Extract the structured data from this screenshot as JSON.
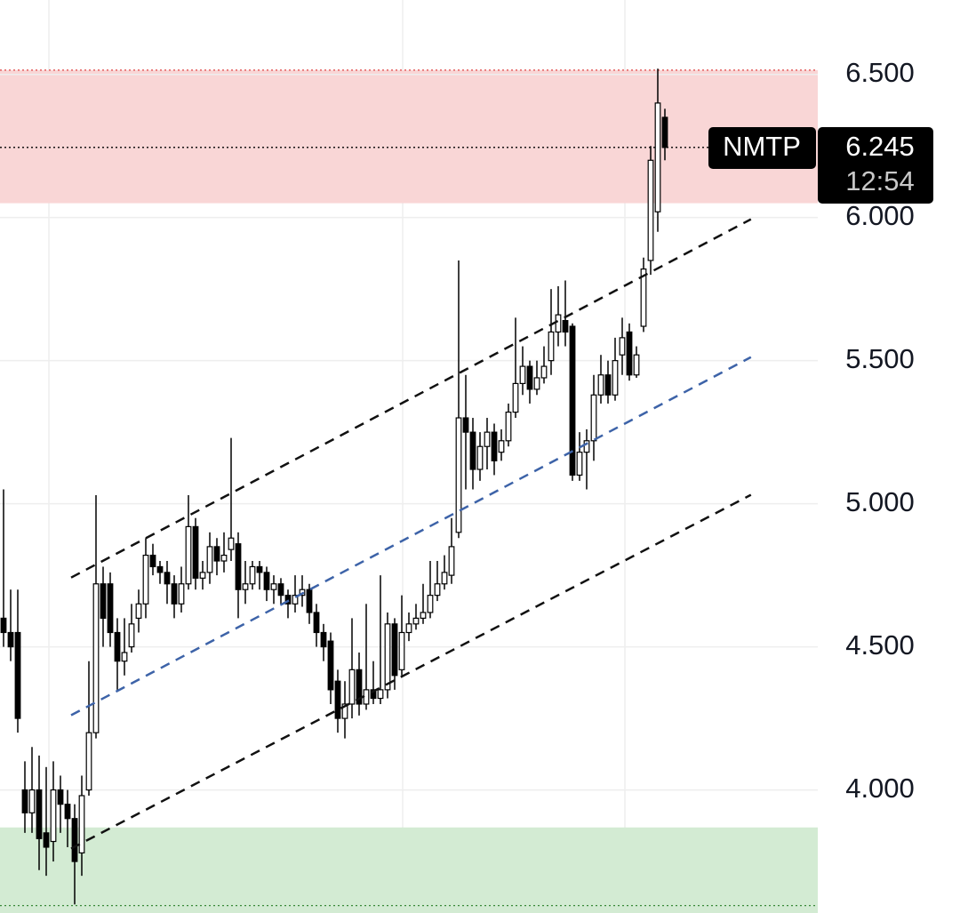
{
  "chart_data": {
    "type": "candlestick",
    "symbol": "NMTP",
    "last_price": 6.245,
    "last_price_label": "6.245",
    "countdown": "12:54",
    "up_color": "#ffffff",
    "down_color": "#000000",
    "border_color": "#000000",
    "xlim": [
      -0.5,
      114.5
    ],
    "ylim": [
      3.57,
      6.76
    ],
    "yticks": [
      {
        "value": 4.0,
        "label": "4.000"
      },
      {
        "value": 4.5,
        "label": "4.500"
      },
      {
        "value": 5.0,
        "label": "5.000"
      },
      {
        "value": 5.5,
        "label": "5.500"
      },
      {
        "value": 6.0,
        "label": "6.000"
      },
      {
        "value": 6.5,
        "label": "6.500"
      }
    ],
    "grid": true,
    "zones": [
      {
        "from": 6.05,
        "to": 6.515,
        "color": "#f9d6d6"
      },
      {
        "from": 3.57,
        "to": 3.869,
        "color": "#d3ebd3"
      }
    ],
    "levels": [
      6.515,
      3.596
    ],
    "lines": [
      {
        "x": [
          9.5,
          105.1
        ],
        "y": [
          4.742,
          5.994
        ],
        "color": "#111111"
      },
      {
        "x": [
          9.5,
          105.1
        ],
        "y": [
          4.261,
          5.512
        ],
        "color": "#3d63a8"
      },
      {
        "x": [
          9.5,
          105.1
        ],
        "y": [
          3.795,
          5.031
        ],
        "color": "#111111"
      }
    ],
    "open": [
      4.6,
      4.55,
      4.55,
      4.0,
      3.92,
      4.0,
      3.85,
      3.82,
      4.0,
      3.95,
      3.9,
      3.78,
      4.0,
      4.2,
      4.72,
      4.72,
      4.55,
      4.45,
      4.5,
      4.6,
      4.65,
      4.82,
      4.78,
      4.76,
      4.72,
      4.65,
      4.72,
      4.92,
      4.74,
      4.76,
      4.85,
      4.8,
      4.84,
      4.86,
      4.7,
      4.72,
      4.78,
      4.76,
      4.7,
      4.72,
      4.68,
      4.65,
      4.68,
      4.7,
      4.62,
      4.55,
      4.52,
      4.38,
      4.25,
      4.3,
      4.42,
      4.3,
      4.35,
      4.32,
      4.35,
      4.58,
      4.42,
      4.55,
      4.58,
      4.6,
      4.62,
      4.68,
      4.72,
      4.75,
      4.9,
      5.3,
      5.25,
      5.12,
      5.2,
      5.25,
      5.18,
      5.22,
      5.32,
      5.42,
      5.48,
      5.4,
      5.44,
      5.5,
      5.6,
      5.64,
      5.62,
      5.1,
      5.18,
      5.22,
      5.38,
      5.45,
      5.38,
      5.52,
      5.6,
      5.45,
      5.62,
      5.85,
      6.02,
      6.35
    ],
    "high": [
      5.05,
      4.7,
      4.7,
      4.1,
      4.15,
      4.12,
      4.08,
      4.1,
      4.05,
      4.0,
      3.95,
      4.05,
      4.45,
      5.03,
      4.78,
      4.76,
      4.6,
      4.6,
      4.65,
      4.7,
      4.88,
      4.86,
      4.8,
      4.8,
      4.75,
      4.78,
      5.03,
      4.95,
      4.8,
      4.9,
      4.88,
      4.9,
      5.23,
      4.9,
      4.8,
      4.8,
      4.8,
      4.78,
      4.75,
      4.74,
      4.7,
      4.75,
      4.75,
      4.72,
      4.65,
      4.58,
      4.55,
      4.42,
      4.38,
      4.6,
      4.48,
      4.65,
      4.45,
      4.75,
      4.62,
      4.6,
      4.68,
      4.62,
      4.65,
      4.72,
      4.8,
      4.8,
      4.82,
      4.95,
      5.85,
      5.45,
      5.3,
      5.25,
      5.3,
      5.28,
      5.26,
      5.35,
      5.65,
      5.55,
      5.5,
      5.5,
      5.55,
      5.75,
      5.76,
      5.78,
      5.63,
      5.25,
      5.26,
      5.45,
      5.52,
      5.5,
      5.58,
      5.65,
      5.63,
      5.55,
      5.86,
      6.25,
      6.52,
      6.38
    ],
    "low": [
      4.5,
      4.45,
      4.2,
      3.85,
      3.85,
      3.72,
      3.7,
      3.75,
      3.85,
      3.8,
      3.6,
      3.7,
      3.98,
      4.18,
      4.5,
      4.5,
      4.35,
      4.4,
      4.48,
      4.55,
      4.6,
      4.75,
      4.72,
      4.65,
      4.6,
      4.62,
      4.7,
      4.7,
      4.7,
      4.72,
      4.75,
      4.76,
      4.8,
      4.6,
      4.65,
      4.7,
      4.7,
      4.66,
      4.65,
      4.65,
      4.6,
      4.62,
      4.64,
      4.58,
      4.5,
      4.45,
      4.3,
      4.2,
      4.18,
      4.25,
      4.26,
      4.28,
      4.3,
      4.3,
      4.32,
      4.35,
      4.4,
      4.52,
      4.56,
      4.58,
      4.6,
      4.66,
      4.7,
      4.72,
      4.88,
      5.05,
      5.05,
      5.08,
      5.12,
      5.1,
      5.15,
      5.2,
      5.3,
      5.38,
      5.35,
      5.38,
      5.42,
      5.45,
      5.55,
      5.55,
      5.08,
      5.08,
      5.05,
      5.15,
      5.35,
      5.35,
      5.36,
      5.45,
      5.43,
      5.44,
      5.6,
      5.8,
      5.95,
      6.2
    ],
    "close": [
      4.55,
      4.5,
      4.25,
      3.92,
      4.0,
      3.83,
      3.8,
      4.0,
      3.95,
      3.9,
      3.75,
      3.98,
      4.2,
      4.72,
      4.6,
      4.55,
      4.45,
      4.48,
      4.58,
      4.65,
      4.82,
      4.78,
      4.76,
      4.72,
      4.65,
      4.72,
      4.92,
      4.74,
      4.76,
      4.85,
      4.8,
      4.82,
      4.88,
      4.7,
      4.72,
      4.78,
      4.76,
      4.7,
      4.72,
      4.68,
      4.65,
      4.68,
      4.7,
      4.62,
      4.55,
      4.5,
      4.35,
      4.25,
      4.3,
      4.42,
      4.3,
      4.35,
      4.32,
      4.35,
      4.58,
      4.4,
      4.55,
      4.58,
      4.6,
      4.62,
      4.68,
      4.72,
      4.76,
      4.85,
      5.3,
      5.25,
      5.12,
      5.2,
      5.25,
      5.15,
      5.22,
      5.32,
      5.42,
      5.48,
      5.4,
      5.44,
      5.48,
      5.6,
      5.66,
      5.6,
      5.1,
      5.18,
      5.22,
      5.38,
      5.45,
      5.38,
      5.5,
      5.58,
      5.45,
      5.52,
      5.82,
      6.2,
      6.4,
      6.245
    ]
  }
}
